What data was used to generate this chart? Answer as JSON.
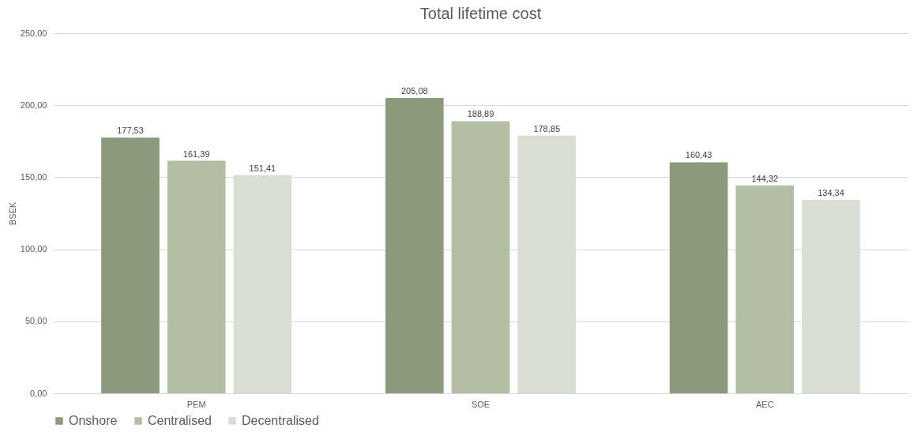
{
  "chart_data": {
    "type": "bar",
    "title": "Total lifetime cost",
    "ylabel": "BSEK",
    "categories": [
      "PEM",
      "SOE",
      "AEC"
    ],
    "series": [
      {
        "name": "Onshore",
        "color": "#8b9a7b",
        "values": [
          177.53,
          205.08,
          160.43
        ],
        "value_labels": [
          "177,53",
          "205,08",
          "160,43"
        ]
      },
      {
        "name": "Centralised",
        "color": "#b2bfa3",
        "values": [
          161.39,
          188.89,
          144.32
        ],
        "value_labels": [
          "161,39",
          "188,89",
          "144,32"
        ]
      },
      {
        "name": "Decentralised",
        "color": "#d9ded3",
        "values": [
          151.41,
          178.85,
          134.34
        ],
        "value_labels": [
          "151,41",
          "178,85",
          "134,34"
        ]
      }
    ],
    "ylim": [
      0,
      250
    ],
    "yticks": [
      {
        "value": 0,
        "label": "0,00"
      },
      {
        "value": 50,
        "label": "50,00"
      },
      {
        "value": 100,
        "label": "100,00"
      },
      {
        "value": 150,
        "label": "150,00"
      },
      {
        "value": 200,
        "label": "200,00"
      },
      {
        "value": 250,
        "label": "250,00"
      }
    ],
    "grid": "y",
    "legend": "bottom"
  }
}
